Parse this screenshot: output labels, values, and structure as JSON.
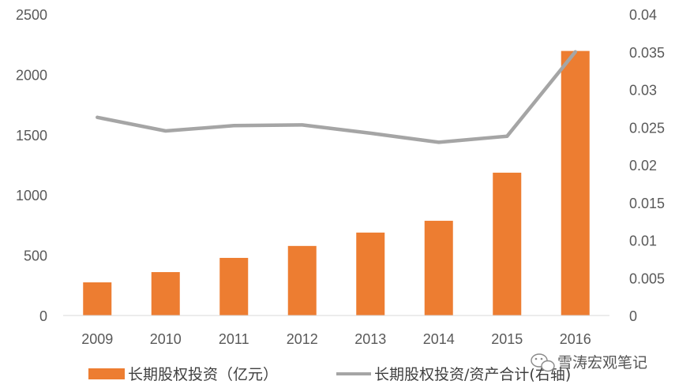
{
  "chart_data": {
    "type": "bar",
    "categories": [
      "2009",
      "2010",
      "2011",
      "2012",
      "2013",
      "2014",
      "2015",
      "2016"
    ],
    "series": [
      {
        "name": "长期股权投资（亿元）",
        "kind": "bar",
        "axis": "left",
        "color": "#ED7D31",
        "values": [
          275,
          360,
          478,
          577,
          688,
          786,
          1185,
          2195
        ]
      },
      {
        "name": "长期股权投资/资产合计(右轴)",
        "kind": "line",
        "axis": "right",
        "color": "#A5A5A5",
        "values": [
          0.0263,
          0.0245,
          0.0252,
          0.0253,
          0.0242,
          0.023,
          0.0238,
          0.035
        ]
      }
    ],
    "y_left": {
      "min": 0,
      "max": 2500,
      "ticks": [
        "0",
        "500",
        "1000",
        "1500",
        "2000",
        "2500"
      ]
    },
    "y_right": {
      "min": 0,
      "max": 0.04,
      "ticks": [
        "0",
        "0.005",
        "0.01",
        "0.015",
        "0.02",
        "0.025",
        "0.03",
        "0.035",
        "0.04"
      ]
    },
    "legend_position": "bottom",
    "grid": false
  },
  "watermark": {
    "text": "雪涛宏观笔记",
    "icon": "wechat-icon"
  }
}
